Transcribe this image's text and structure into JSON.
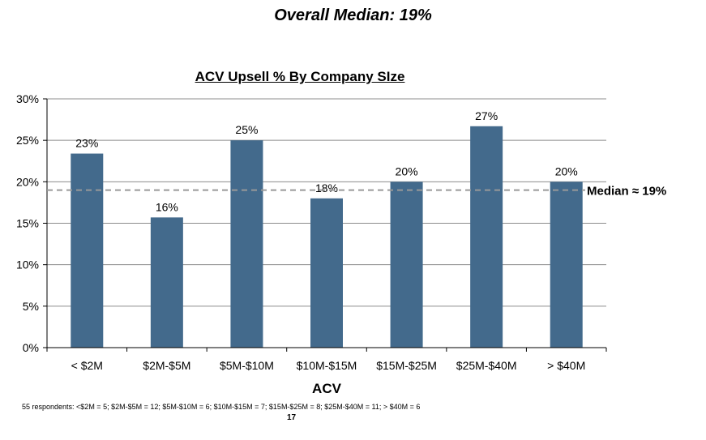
{
  "headline": "Overall Median: 19%",
  "footnote": "55 respondents: <$2M = 5; $2M-$5M = 12; $5M-$10M = 6; $10M-$15M = 7; $15M-$25M = 8; $25M-$40M = 11; > $40M = 6",
  "page_number": "17",
  "chart_data": {
    "type": "bar",
    "title": "ACV Upsell % By Company SIze",
    "xlabel": "ACV",
    "ylabel": "",
    "categories": [
      "< $2M",
      "$2M-$5M",
      "$5M-$10M",
      "$10M-$15M",
      "$15M-$25M",
      "$25M-$40M",
      "> $40M"
    ],
    "values": [
      23.4,
      15.7,
      25.0,
      18.0,
      20.0,
      26.7,
      20.0
    ],
    "data_labels": [
      "23%",
      "16%",
      "25%",
      "18%",
      "20%",
      "27%",
      "20%"
    ],
    "ylim": [
      0,
      30
    ],
    "yticks": [
      0,
      5,
      10,
      15,
      20,
      25,
      30
    ],
    "ytick_labels": [
      "0%",
      "5%",
      "10%",
      "15%",
      "20%",
      "25%",
      "30%"
    ],
    "grid": true,
    "bar_color": "#436a8c",
    "median": {
      "value": 19,
      "label": "Median  ≈ 19%",
      "color": "#999999"
    }
  }
}
